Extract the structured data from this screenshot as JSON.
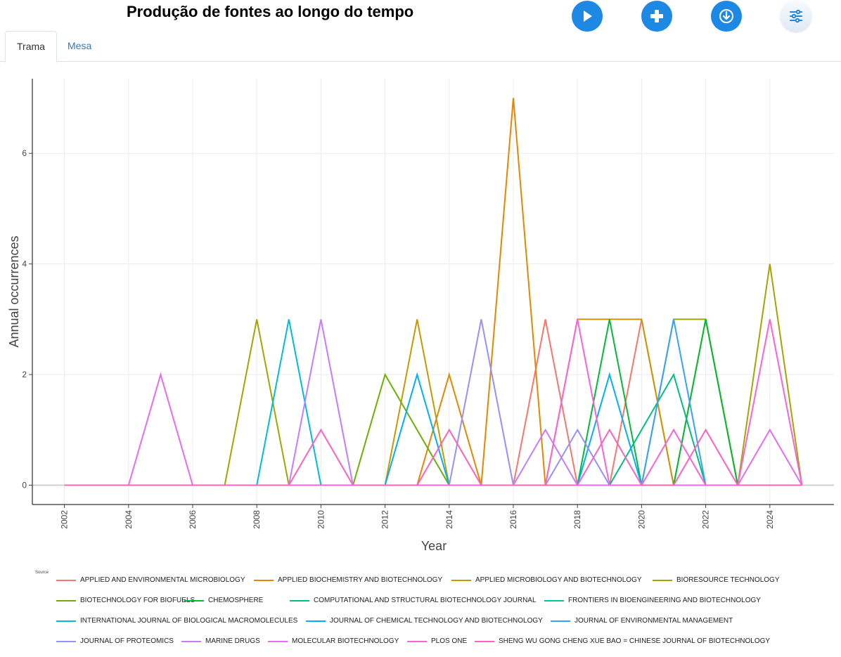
{
  "header": {
    "title": "Produção de fontes ao longo do tempo",
    "buttons": [
      {
        "name": "play-button",
        "icon": "play-icon"
      },
      {
        "name": "add-button",
        "icon": "plus-icon"
      },
      {
        "name": "download-button",
        "icon": "download-icon"
      },
      {
        "name": "settings-button",
        "icon": "sliders-icon"
      }
    ]
  },
  "tabs": [
    {
      "label": "Trama",
      "active": true
    },
    {
      "label": "Mesa",
      "active": false
    }
  ],
  "chart_data": {
    "type": "line",
    "title": "",
    "xlabel": "Year",
    "ylabel": "Annual occurrences",
    "legend_title": "Source",
    "legend_position": "bottom",
    "grid": true,
    "xlim": [
      2001,
      2026
    ],
    "ylim": [
      -0.35,
      7.35
    ],
    "x_ticks": [
      2002,
      2004,
      2006,
      2008,
      2010,
      2012,
      2014,
      2016,
      2018,
      2020,
      2022,
      2024
    ],
    "y_ticks": [
      0,
      2,
      4,
      6
    ],
    "x": [
      2002,
      2003,
      2004,
      2005,
      2006,
      2007,
      2008,
      2009,
      2010,
      2011,
      2012,
      2013,
      2014,
      2015,
      2016,
      2017,
      2018,
      2019,
      2020,
      2021,
      2022,
      2023,
      2024,
      2025
    ],
    "series": [
      {
        "name": "APPLIED AND ENVIRONMENTAL MICROBIOLOGY",
        "color": "#f8766d",
        "values": [
          0,
          0,
          0,
          0,
          0,
          0,
          0,
          0,
          0,
          0,
          0,
          0,
          0,
          0,
          0,
          3,
          0,
          0,
          3,
          0,
          0,
          0,
          0,
          0
        ]
      },
      {
        "name": "APPLIED BIOCHEMISTRY AND BIOTECHNOLOGY",
        "color": "#e58700",
        "values": [
          0,
          0,
          0,
          0,
          0,
          0,
          0,
          0,
          0,
          0,
          0,
          0,
          2,
          0,
          7,
          0,
          0,
          0,
          0,
          0,
          0,
          0,
          0,
          0
        ]
      },
      {
        "name": "APPLIED MICROBIOLOGY AND BIOTECHNOLOGY",
        "color": "#c99800",
        "values": [
          0,
          0,
          0,
          0,
          0,
          0,
          0,
          0,
          0,
          0,
          0,
          3,
          0,
          0,
          0,
          0,
          3,
          3,
          3,
          0,
          3,
          0,
          0,
          0
        ]
      },
      {
        "name": "BIORESOURCE TECHNOLOGY",
        "color": "#a3a500",
        "values": [
          0,
          0,
          0,
          0,
          0,
          0,
          3,
          0,
          0,
          0,
          0,
          0,
          0,
          0,
          0,
          0,
          0,
          0,
          0,
          3,
          3,
          0,
          4,
          0
        ]
      },
      {
        "name": "BIOTECHNOLOGY FOR BIOFUELS",
        "color": "#6bb100",
        "values": [
          0,
          0,
          0,
          0,
          0,
          0,
          0,
          0,
          0,
          0,
          2,
          1,
          0,
          0,
          0,
          0,
          0,
          0,
          0,
          0,
          0,
          0,
          0,
          0
        ]
      },
      {
        "name": "CHEMOSPHERE",
        "color": "#00ba38",
        "values": [
          0,
          0,
          0,
          0,
          0,
          0,
          0,
          0,
          0,
          0,
          0,
          0,
          0,
          0,
          0,
          0,
          0,
          3,
          0,
          0,
          3,
          0,
          0,
          0
        ]
      },
      {
        "name": "COMPUTATIONAL AND STRUCTURAL BIOTECHNOLOGY JOURNAL",
        "color": "#00bf7d",
        "values": [
          0,
          0,
          0,
          0,
          0,
          0,
          0,
          0,
          0,
          0,
          0,
          0,
          0,
          0,
          0,
          0,
          0,
          0,
          1,
          2,
          0,
          0,
          0,
          0
        ]
      },
      {
        "name": "FRONTIERS IN BIOENGINEERING AND BIOTECHNOLOGY",
        "color": "#00c0af",
        "values": [
          0,
          0,
          0,
          0,
          0,
          0,
          0,
          0,
          0,
          0,
          0,
          0,
          0,
          0,
          0,
          0,
          0,
          0,
          0,
          0,
          0,
          0,
          0,
          0
        ]
      },
      {
        "name": "INTERNATIONAL JOURNAL OF BIOLOGICAL MACROMOLECULES",
        "color": "#00bcd8",
        "values": [
          0,
          0,
          0,
          0,
          0,
          0,
          0,
          3,
          0,
          0,
          0,
          0,
          0,
          0,
          0,
          0,
          0,
          0,
          0,
          0,
          0,
          0,
          0,
          0
        ]
      },
      {
        "name": "JOURNAL OF CHEMICAL TECHNOLOGY AND BIOTECHNOLOGY",
        "color": "#00b0f6",
        "values": [
          0,
          0,
          0,
          0,
          0,
          0,
          0,
          0,
          0,
          0,
          0,
          2,
          0,
          0,
          0,
          0,
          0,
          2,
          0,
          0,
          0,
          0,
          0,
          0
        ]
      },
      {
        "name": "JOURNAL OF ENVIRONMENTAL MANAGEMENT",
        "color": "#35a2ff",
        "values": [
          0,
          0,
          0,
          0,
          0,
          0,
          0,
          0,
          0,
          0,
          0,
          0,
          0,
          0,
          0,
          0,
          0,
          0,
          0,
          3,
          0,
          0,
          0,
          0
        ]
      },
      {
        "name": "JOURNAL OF PROTEOMICS",
        "color": "#9590ff",
        "values": [
          0,
          0,
          0,
          0,
          0,
          0,
          0,
          0,
          0,
          0,
          0,
          0,
          0,
          3,
          0,
          0,
          1,
          0,
          0,
          0,
          0,
          0,
          0,
          0
        ]
      },
      {
        "name": "MARINE DRUGS",
        "color": "#c77cff",
        "values": [
          0,
          0,
          0,
          0,
          0,
          0,
          0,
          0,
          3,
          0,
          0,
          0,
          0,
          0,
          0,
          1,
          0,
          0,
          0,
          0,
          0,
          0,
          0,
          0
        ]
      },
      {
        "name": "MOLECULAR BIOTECHNOLOGY",
        "color": "#e76bf3",
        "values": [
          0,
          0,
          0,
          2,
          0,
          0,
          0,
          0,
          0,
          0,
          0,
          0,
          0,
          0,
          0,
          0,
          0,
          0,
          0,
          0,
          0,
          0,
          1,
          0
        ]
      },
      {
        "name": "PLOS ONE",
        "color": "#fa62db",
        "values": [
          0,
          0,
          0,
          0,
          0,
          0,
          0,
          0,
          0,
          0,
          0,
          0,
          0,
          0,
          0,
          0,
          3,
          0,
          0,
          1,
          0,
          0,
          3,
          0
        ]
      },
      {
        "name": "SHENG WU GONG CHENG XUE BAO = CHINESE JOURNAL OF BIOTECHNOLOGY",
        "color": "#ff62bc",
        "values": [
          0,
          0,
          0,
          0,
          0,
          0,
          0,
          0,
          1,
          0,
          0,
          0,
          1,
          0,
          0,
          0,
          0,
          1,
          0,
          0,
          1,
          0,
          0,
          0
        ]
      }
    ]
  }
}
